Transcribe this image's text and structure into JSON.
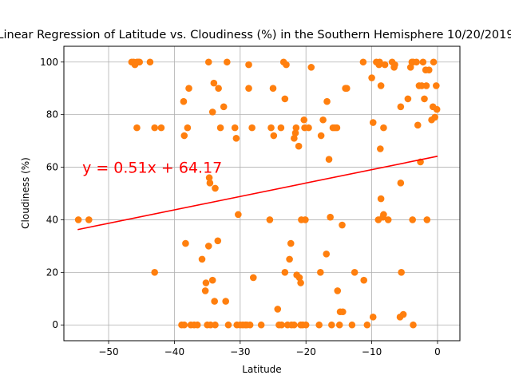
{
  "chart_data": {
    "type": "scatter",
    "title": "Linear Regression of Latitude vs. Cloudiness (%) in the Southern Hemisphere 10/20/2019",
    "xlabel": "Latitude",
    "ylabel": "Cloudiness (%)",
    "xlim": [
      -56.8,
      3.4
    ],
    "ylim": [
      -6,
      106
    ],
    "xticks": [
      -50,
      -40,
      -30,
      -20,
      -10,
      0
    ],
    "yticks": [
      0,
      20,
      40,
      60,
      80,
      100
    ],
    "grid": true,
    "point_color": "#ff7f0e",
    "line_color": "#ff0000",
    "regression": {
      "slope": 0.51,
      "intercept": 64.17,
      "x_range": [
        -54.7,
        0
      ],
      "equation_label": "y = 0.51x + 64.17",
      "label_at": [
        -54,
        60
      ]
    },
    "points": [
      [
        -54.6,
        40
      ],
      [
        -53,
        40
      ],
      [
        -46.5,
        100
      ],
      [
        -46.2,
        100
      ],
      [
        -46,
        99
      ],
      [
        -45.7,
        100
      ],
      [
        -45.5,
        100
      ],
      [
        -45.3,
        100
      ],
      [
        -43.7,
        100
      ],
      [
        -45.7,
        75
      ],
      [
        -43,
        75
      ],
      [
        -42,
        75
      ],
      [
        -43,
        20
      ],
      [
        -38.9,
        0
      ],
      [
        -38.5,
        0
      ],
      [
        -38.6,
        85
      ],
      [
        -38.5,
        72
      ],
      [
        -38,
        75
      ],
      [
        -37.8,
        90
      ],
      [
        -38.3,
        31
      ],
      [
        -37.5,
        0
      ],
      [
        -37,
        0
      ],
      [
        -36.5,
        0
      ],
      [
        -35.8,
        25
      ],
      [
        -35.3,
        13
      ],
      [
        -35.2,
        16
      ],
      [
        -35,
        0
      ],
      [
        -34.8,
        30
      ],
      [
        -34.7,
        56
      ],
      [
        -34.6,
        54
      ],
      [
        -34.8,
        100
      ],
      [
        -34.5,
        0
      ],
      [
        -34.2,
        17
      ],
      [
        -33.9,
        9
      ],
      [
        -33.8,
        0
      ],
      [
        -34.2,
        81
      ],
      [
        -34,
        92
      ],
      [
        -33.8,
        52
      ],
      [
        -33.3,
        90
      ],
      [
        -33.4,
        32
      ],
      [
        -33,
        75
      ],
      [
        -32.5,
        83
      ],
      [
        -32.2,
        9
      ],
      [
        -31.8,
        0
      ],
      [
        -32,
        100
      ],
      [
        -30.8,
        75
      ],
      [
        -30.6,
        71
      ],
      [
        -30.3,
        42
      ],
      [
        -30.5,
        0
      ],
      [
        -30,
        0
      ],
      [
        -29.6,
        0
      ],
      [
        -29.2,
        0
      ],
      [
        -29,
        0
      ],
      [
        -28.7,
        99
      ],
      [
        -28.7,
        90
      ],
      [
        -28.5,
        0
      ],
      [
        -28.2,
        75
      ],
      [
        -28,
        18
      ],
      [
        -26.8,
        0
      ],
      [
        -25.5,
        40
      ],
      [
        -25.3,
        75
      ],
      [
        -25,
        90
      ],
      [
        -24.9,
        72
      ],
      [
        -24.3,
        6
      ],
      [
        -24.1,
        0
      ],
      [
        -23.8,
        75
      ],
      [
        -23.7,
        0
      ],
      [
        -23.4,
        100
      ],
      [
        -23.2,
        86
      ],
      [
        -23.2,
        20
      ],
      [
        -23,
        99
      ],
      [
        -22.8,
        0
      ],
      [
        -22.5,
        25
      ],
      [
        -22.3,
        31
      ],
      [
        -22.2,
        0
      ],
      [
        -21.8,
        0
      ],
      [
        -21.8,
        71
      ],
      [
        -21.6,
        73
      ],
      [
        -21.5,
        75
      ],
      [
        -21.4,
        19
      ],
      [
        -21.1,
        68
      ],
      [
        -21,
        18
      ],
      [
        -20.8,
        0
      ],
      [
        -20.8,
        16
      ],
      [
        -20.7,
        40
      ],
      [
        -20.5,
        0
      ],
      [
        -20.3,
        78
      ],
      [
        -20.2,
        75
      ],
      [
        -20.1,
        40
      ],
      [
        -20,
        0
      ],
      [
        -19.6,
        75
      ],
      [
        -19.2,
        98
      ],
      [
        -18,
        0
      ],
      [
        -17.8,
        20
      ],
      [
        -17.7,
        72
      ],
      [
        -17.4,
        78
      ],
      [
        -16.9,
        27
      ],
      [
        -16.8,
        85
      ],
      [
        -16.5,
        63
      ],
      [
        -16.3,
        41
      ],
      [
        -16.1,
        0
      ],
      [
        -15.9,
        75
      ],
      [
        -15.6,
        75
      ],
      [
        -15.3,
        75
      ],
      [
        -15.2,
        13
      ],
      [
        -14.9,
        0
      ],
      [
        -14.8,
        5
      ],
      [
        -14.5,
        38
      ],
      [
        -14.4,
        5
      ],
      [
        -14,
        90
      ],
      [
        -13.8,
        90
      ],
      [
        -13,
        0
      ],
      [
        -12.6,
        20
      ],
      [
        -11.3,
        100
      ],
      [
        -11.2,
        17
      ],
      [
        -10.7,
        0
      ],
      [
        -10,
        94
      ],
      [
        -9.8,
        3
      ],
      [
        -9.8,
        77
      ],
      [
        -9.3,
        100
      ],
      [
        -9,
        40
      ],
      [
        -8.9,
        99
      ],
      [
        -8.8,
        100
      ],
      [
        -8.7,
        67
      ],
      [
        -8.6,
        48
      ],
      [
        -8.6,
        91
      ],
      [
        -8.3,
        41
      ],
      [
        -8.2,
        75
      ],
      [
        -8.2,
        42
      ],
      [
        -8,
        99
      ],
      [
        -7.5,
        40
      ],
      [
        -6.9,
        100
      ],
      [
        -6.6,
        98
      ],
      [
        -6.5,
        99
      ],
      [
        -5.7,
        3
      ],
      [
        -5.6,
        83
      ],
      [
        -5.6,
        54
      ],
      [
        -5.5,
        20
      ],
      [
        -5.2,
        4
      ],
      [
        -4.5,
        86
      ],
      [
        -4.1,
        98
      ],
      [
        -3.9,
        100
      ],
      [
        -3.8,
        40
      ],
      [
        -3.7,
        100
      ],
      [
        -3.7,
        0
      ],
      [
        -3.2,
        100
      ],
      [
        -3,
        76
      ],
      [
        -2.8,
        91
      ],
      [
        -2.6,
        62
      ],
      [
        -2.4,
        91
      ],
      [
        -2.2,
        100
      ],
      [
        -2,
        86
      ],
      [
        -1.8,
        97
      ],
      [
        -1.7,
        91
      ],
      [
        -1.6,
        40
      ],
      [
        -1.3,
        97
      ],
      [
        -0.9,
        78
      ],
      [
        -0.7,
        83
      ],
      [
        -0.6,
        100
      ],
      [
        -0.4,
        79
      ],
      [
        -0.2,
        91
      ],
      [
        -0.1,
        82
      ]
    ]
  }
}
